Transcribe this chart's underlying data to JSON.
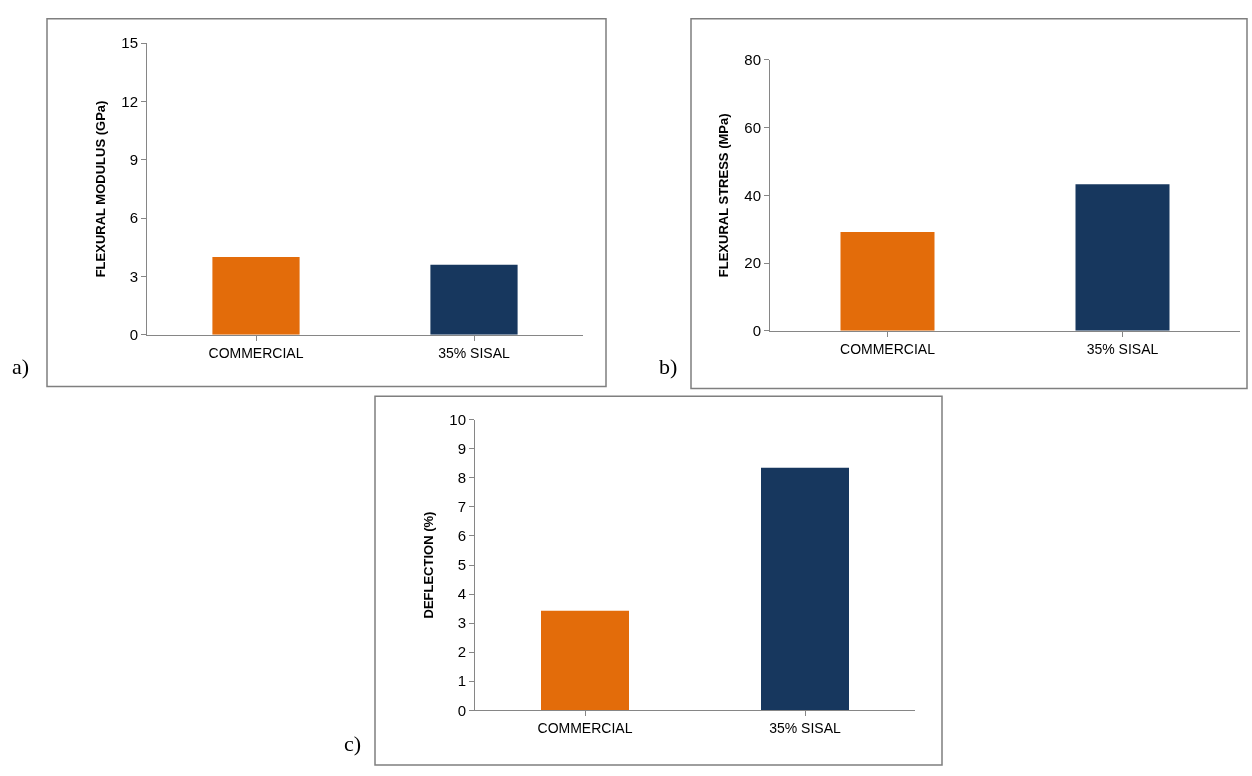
{
  "chart_data": [
    {
      "type": "bar",
      "categories": [
        "COMMERCIAL",
        "35% SISAL"
      ],
      "values": [
        4.0,
        3.6
      ],
      "colors": [
        "#e36c0a",
        "#17375e"
      ],
      "ylabel": "FLEXURAL MODULUS (GPa)",
      "ylim": [
        0,
        15
      ],
      "yticks": [
        0,
        3,
        6,
        9,
        12,
        15
      ],
      "annotations": [
        "a)"
      ]
    },
    {
      "type": "bar",
      "categories": [
        "COMMERCIAL",
        "35% SISAL"
      ],
      "values": [
        29.2,
        43.3
      ],
      "colors": [
        "#e36c0a",
        "#17375e"
      ],
      "ylabel": "FLEXURAL STRESS (MPa)",
      "ylim": [
        0,
        80
      ],
      "yticks": [
        0,
        20,
        40,
        60,
        80
      ],
      "annotations": [
        "b)"
      ]
    },
    {
      "type": "bar",
      "categories": [
        "COMMERCIAL",
        "35% SISAL"
      ],
      "values": [
        3.43,
        8.35
      ],
      "colors": [
        "#e36c0a",
        "#17375e"
      ],
      "ylabel": "DEFLECTION (%)",
      "ylim": [
        0,
        10
      ],
      "yticks": [
        0,
        1,
        2,
        3,
        4,
        5,
        6,
        7,
        8,
        9,
        10
      ],
      "annotations": [
        "c)"
      ]
    }
  ]
}
